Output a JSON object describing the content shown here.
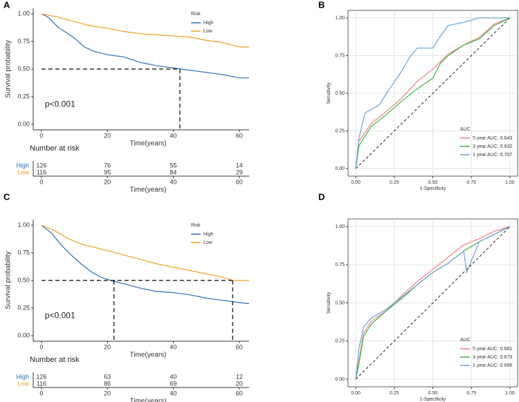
{
  "chart_data": [
    {
      "type": "survival",
      "letter": "A",
      "ylabel": "Survival probability",
      "xlabel": "Time(years)",
      "xlim": [
        -2.5,
        63
      ],
      "xticks": [
        0,
        20,
        40,
        60
      ],
      "ylim": [
        -0.05,
        1.05
      ],
      "yticks": [
        {
          "value": 0,
          "label": "0.00"
        },
        {
          "value": 0.25,
          "label": "0.25"
        },
        {
          "value": 0.5,
          "label": "0.50"
        },
        {
          "value": 0.75,
          "label": "0.75"
        },
        {
          "value": 1,
          "label": "1.00"
        }
      ],
      "legend_title": "Risk",
      "pvalue": "p<0.001",
      "median_line": {
        "y": 0.5,
        "x": [
          42
        ]
      },
      "series": [
        {
          "name": "High",
          "color": "#2e6db4",
          "x": [
            0,
            2,
            5,
            8,
            10,
            13,
            16,
            20,
            25,
            30,
            35,
            40,
            45,
            50,
            55,
            60,
            63
          ],
          "values": [
            1,
            0.97,
            0.88,
            0.82,
            0.78,
            0.7,
            0.66,
            0.63,
            0.61,
            0.56,
            0.53,
            0.51,
            0.49,
            0.47,
            0.45,
            0.42,
            0.42
          ]
        },
        {
          "name": "Low",
          "color": "#f0a020",
          "x": [
            0,
            5,
            10,
            15,
            20,
            25,
            30,
            35,
            40,
            45,
            50,
            55,
            60,
            63
          ],
          "values": [
            1,
            0.97,
            0.93,
            0.89,
            0.87,
            0.84,
            0.82,
            0.81,
            0.8,
            0.79,
            0.76,
            0.74,
            0.7,
            0.7
          ]
        }
      ],
      "risk_table": {
        "title": "Number at risk",
        "x": [
          0,
          20,
          40,
          60
        ],
        "rows": [
          [
            126,
            76,
            55,
            14
          ],
          [
            116,
            95,
            84,
            29
          ]
        ]
      }
    },
    {
      "type": "roc",
      "letter": "B",
      "ylabel": "Sensitivity",
      "xlabel": "1-Specificity",
      "xlim": [
        -0.05,
        1.05
      ],
      "ylim": [
        -0.05,
        1.05
      ],
      "xticks": [
        {
          "value": 0,
          "label": "0.00"
        },
        {
          "value": 0.25,
          "label": "0.25"
        },
        {
          "value": 0.5,
          "label": "0.50"
        },
        {
          "value": 0.75,
          "label": "0.75"
        },
        {
          "value": 1,
          "label": "1.00"
        }
      ],
      "yticks": [
        {
          "value": 0,
          "label": "0.00"
        },
        {
          "value": 0.25,
          "label": "0.25"
        },
        {
          "value": 0.5,
          "label": "0.50"
        },
        {
          "value": 0.75,
          "label": "0.75"
        },
        {
          "value": 1,
          "label": "1.00"
        }
      ],
      "grid": true,
      "legend_title": "AUC",
      "series": [
        {
          "name": "5 year AUC: 0.643",
          "color": "#f08080",
          "x": [
            0,
            0.02,
            0.1,
            0.2,
            0.3,
            0.4,
            0.5,
            0.6,
            0.7,
            0.8,
            0.9,
            1
          ],
          "values": [
            0,
            0.18,
            0.3,
            0.38,
            0.47,
            0.58,
            0.66,
            0.76,
            0.82,
            0.87,
            0.96,
            1
          ]
        },
        {
          "name": "3 year AUC: 0.632",
          "color": "#3cb043",
          "x": [
            0,
            0.02,
            0.1,
            0.2,
            0.3,
            0.4,
            0.5,
            0.55,
            0.6,
            0.7,
            0.8,
            0.9,
            1
          ],
          "values": [
            0,
            0.15,
            0.28,
            0.36,
            0.45,
            0.53,
            0.6,
            0.7,
            0.75,
            0.82,
            0.86,
            0.95,
            1
          ]
        },
        {
          "name": "1 year AUC: 0.707",
          "color": "#6a9fd8",
          "x": [
            0,
            0.02,
            0.06,
            0.15,
            0.2,
            0.3,
            0.35,
            0.4,
            0.5,
            0.55,
            0.6,
            0.7,
            0.8,
            1
          ],
          "values": [
            0,
            0.2,
            0.37,
            0.42,
            0.5,
            0.65,
            0.74,
            0.8,
            0.8,
            0.88,
            0.95,
            0.97,
            1,
            1
          ]
        }
      ]
    },
    {
      "type": "survival",
      "letter": "C",
      "ylabel": "Survival probability",
      "xlabel": "Time(years)",
      "xlim": [
        -2.5,
        63
      ],
      "xticks": [
        0,
        20,
        40,
        60
      ],
      "ylim": [
        -0.05,
        1.05
      ],
      "yticks": [
        {
          "value": 0,
          "label": "0.00"
        },
        {
          "value": 0.25,
          "label": "0.25"
        },
        {
          "value": 0.5,
          "label": "0.50"
        },
        {
          "value": 0.75,
          "label": "0.75"
        },
        {
          "value": 1,
          "label": "1.00"
        }
      ],
      "legend_title": "Risk",
      "pvalue": "p<0.001",
      "median_line": {
        "y": 0.5,
        "x": [
          22,
          58
        ]
      },
      "series": [
        {
          "name": "High",
          "color": "#2e6db4",
          "x": [
            0,
            3,
            6,
            9,
            12,
            15,
            18,
            21,
            25,
            30,
            35,
            40,
            45,
            50,
            55,
            60,
            63
          ],
          "values": [
            1,
            0.93,
            0.82,
            0.73,
            0.65,
            0.58,
            0.53,
            0.5,
            0.47,
            0.43,
            0.4,
            0.39,
            0.37,
            0.34,
            0.32,
            0.3,
            0.29
          ]
        },
        {
          "name": "Low",
          "color": "#f0a020",
          "x": [
            0,
            4,
            8,
            12,
            16,
            20,
            25,
            30,
            35,
            40,
            45,
            50,
            55,
            58,
            60,
            63
          ],
          "values": [
            1,
            0.95,
            0.88,
            0.83,
            0.8,
            0.77,
            0.73,
            0.69,
            0.65,
            0.62,
            0.59,
            0.56,
            0.53,
            0.5,
            0.5,
            0.5
          ]
        }
      ],
      "risk_table": {
        "title": "Number at risk",
        "x": [
          0,
          20,
          40,
          60
        ],
        "rows": [
          [
            126,
            63,
            40,
            12
          ],
          [
            116,
            86,
            69,
            20
          ]
        ]
      }
    },
    {
      "type": "roc",
      "letter": "D",
      "ylabel": "Sensitivity",
      "xlabel": "1-Specificity",
      "xlim": [
        -0.05,
        1.05
      ],
      "ylim": [
        -0.05,
        1.05
      ],
      "xticks": [
        {
          "value": 0,
          "label": "0.00"
        },
        {
          "value": 0.25,
          "label": "0.25"
        },
        {
          "value": 0.5,
          "label": "0.50"
        },
        {
          "value": 0.75,
          "label": "0.75"
        },
        {
          "value": 1,
          "label": "1.00"
        }
      ],
      "yticks": [
        {
          "value": 0,
          "label": "0.00"
        },
        {
          "value": 0.25,
          "label": "0.25"
        },
        {
          "value": 0.5,
          "label": "0.50"
        },
        {
          "value": 0.75,
          "label": "0.75"
        },
        {
          "value": 1,
          "label": "1.00"
        }
      ],
      "grid": true,
      "legend_title": "AUC",
      "series": [
        {
          "name": "5 year AUC: 0.681",
          "color": "#f08080",
          "x": [
            0,
            0.02,
            0.05,
            0.1,
            0.2,
            0.3,
            0.4,
            0.5,
            0.6,
            0.7,
            0.8,
            0.9,
            1
          ],
          "values": [
            0,
            0.12,
            0.3,
            0.38,
            0.45,
            0.55,
            0.64,
            0.72,
            0.8,
            0.88,
            0.92,
            0.97,
            1
          ]
        },
        {
          "name": "3 year AUC: 0.673",
          "color": "#3cb043",
          "x": [
            0,
            0.02,
            0.05,
            0.1,
            0.2,
            0.3,
            0.4,
            0.5,
            0.6,
            0.7,
            0.8,
            0.9,
            1
          ],
          "values": [
            0,
            0.1,
            0.28,
            0.36,
            0.45,
            0.53,
            0.62,
            0.7,
            0.76,
            0.84,
            0.9,
            0.95,
            1
          ]
        },
        {
          "name": "1 year AUC: 0.666",
          "color": "#6a9fd8",
          "x": [
            0,
            0.02,
            0.05,
            0.1,
            0.2,
            0.3,
            0.4,
            0.5,
            0.6,
            0.7,
            0.72,
            0.8,
            0.9,
            1
          ],
          "values": [
            0,
            0.2,
            0.34,
            0.4,
            0.46,
            0.54,
            0.62,
            0.7,
            0.76,
            0.84,
            0.7,
            0.9,
            0.95,
            1
          ]
        }
      ]
    }
  ]
}
